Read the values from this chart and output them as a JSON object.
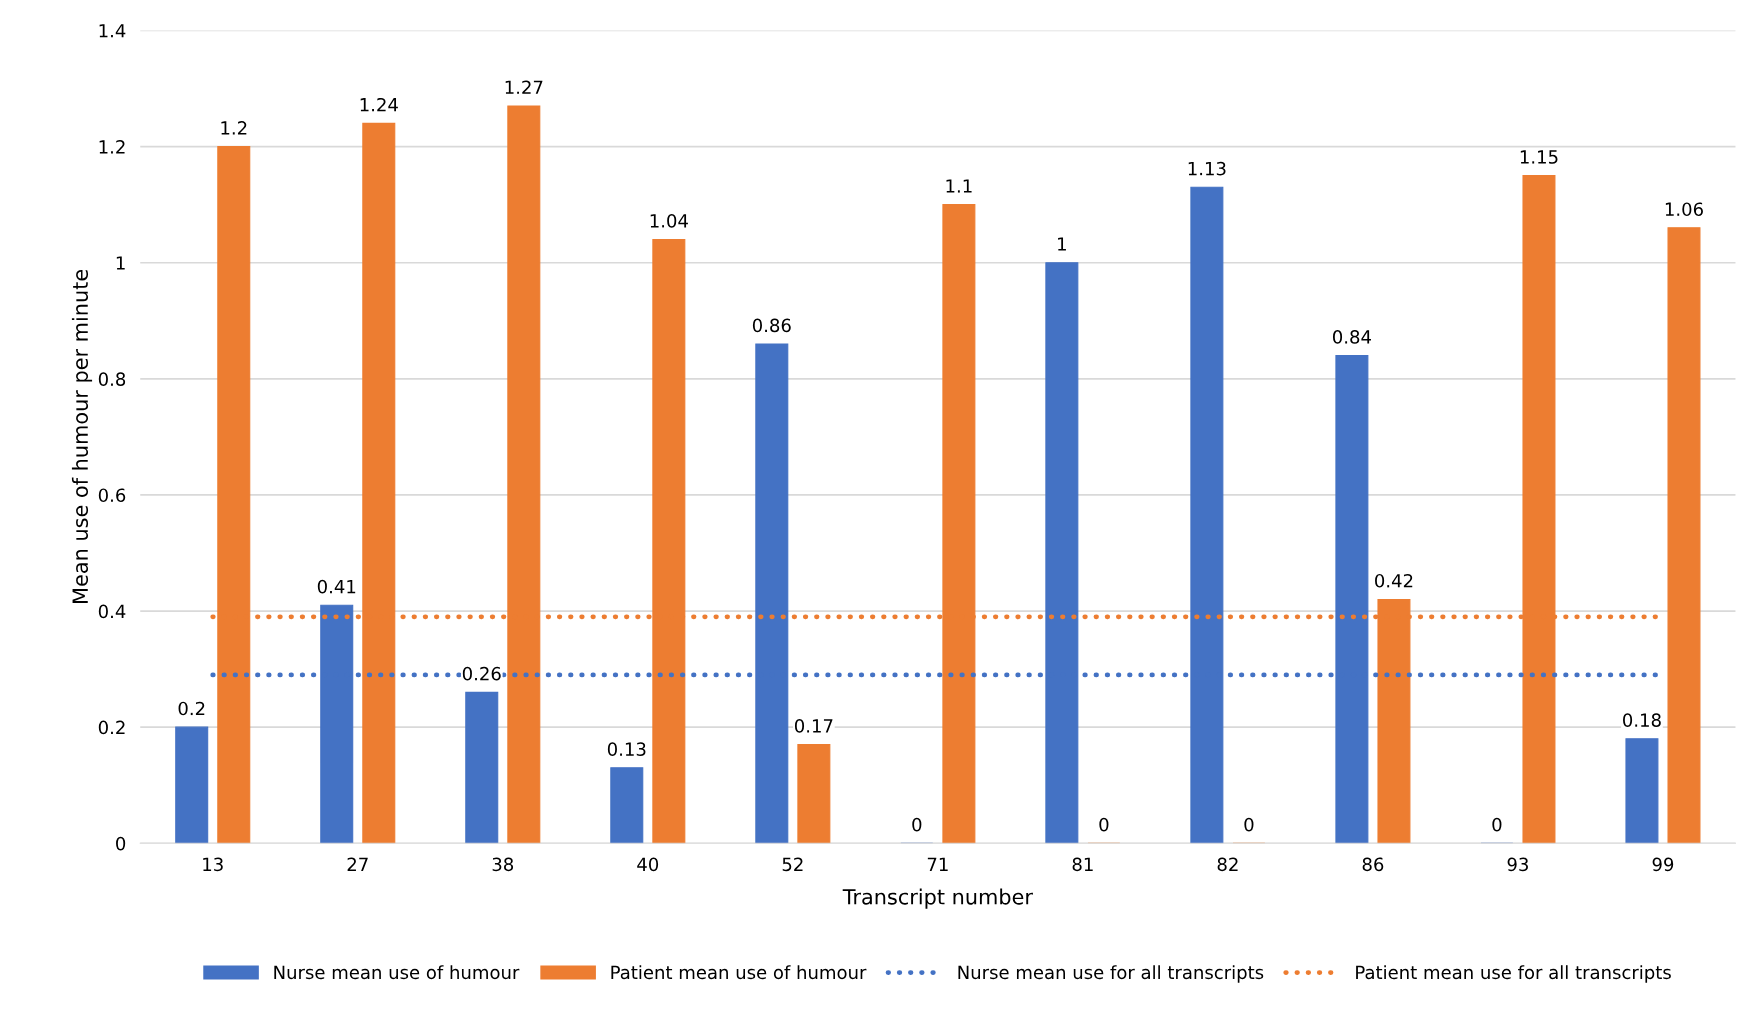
{
  "chart_data": {
    "type": "bar",
    "xlabel": "Transcript number",
    "ylabel": "Mean use of humour per minute",
    "categories": [
      "13",
      "27",
      "38",
      "40",
      "52",
      "71",
      "81",
      "82",
      "86",
      "93",
      "99"
    ],
    "series": [
      {
        "name": "Nurse mean use of humour",
        "color": "#4472c4",
        "values": [
          0.2,
          0.41,
          0.26,
          0.13,
          0.86,
          0,
          1,
          1.13,
          0.84,
          0,
          0.18
        ],
        "value_labels": [
          "0.2",
          "0.41",
          "0.26",
          "0.13",
          "0.86",
          "0",
          "1",
          "1.13",
          "0.84",
          "0",
          "0.18"
        ]
      },
      {
        "name": "Patient mean use of humour",
        "color": "#ed7d31",
        "values": [
          1.2,
          1.24,
          1.27,
          1.04,
          0.17,
          1.1,
          0,
          0,
          0.42,
          1.15,
          1.06
        ],
        "value_labels": [
          "1.2",
          "1.24",
          "1.27",
          "1.04",
          "0.17",
          "1.1",
          "0",
          "0",
          "0.42",
          "1.15",
          "1.06"
        ]
      },
      {
        "name": "Nurse mean use for all transcripts",
        "type": "line",
        "line_style": "dotted",
        "color": "#4472c4",
        "values": [
          0.29,
          0.29,
          0.29,
          0.29,
          0.29,
          0.29,
          0.29,
          0.29,
          0.29,
          0.29,
          0.29
        ]
      },
      {
        "name": "Patient mean use for all transcripts",
        "type": "line",
        "line_style": "dotted",
        "color": "#ed7d31",
        "values": [
          0.39,
          0.39,
          0.39,
          0.39,
          0.39,
          0.39,
          0.39,
          0.39,
          0.39,
          0.39,
          0.39
        ]
      }
    ],
    "ylim": [
      0,
      1.4
    ],
    "yticks": [
      0,
      0.2,
      0.4,
      0.6,
      0.8,
      1,
      1.2,
      1.4
    ],
    "grid": "y",
    "legend": "bottom"
  }
}
